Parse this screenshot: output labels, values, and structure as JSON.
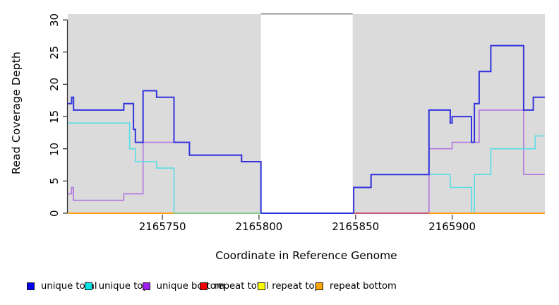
{
  "axes": {
    "x_label": "Coordinate in Reference Genome",
    "y_label": "Read Coverage Depth",
    "x_ticks": [
      2165750,
      2165800,
      2165850,
      2165900
    ],
    "y_ticks": [
      0,
      5,
      10,
      15,
      20,
      25,
      30
    ],
    "x_range": [
      2165701,
      2165948
    ],
    "y_range": [
      0,
      31
    ]
  },
  "legend": [
    {
      "label": "unique total",
      "color": "#0000EE"
    },
    {
      "label": "unique top",
      "color": "#00E6E6"
    },
    {
      "label": "unique bottom",
      "color": "#A020F0"
    },
    {
      "label": "repeat total",
      "color": "#EE0000"
    },
    {
      "label": "repeat top",
      "color": "#FFFF00"
    },
    {
      "label": "repeat bottom",
      "color": "#FFA500"
    }
  ],
  "chart_data": {
    "type": "line",
    "style": "step-after",
    "grid": "off",
    "plot_bg": "#DBDBDB",
    "masked_region": {
      "x_start": 2165801,
      "x_end": 2165848.5,
      "fill": "#FFFFFF",
      "border_top_color": "#8A8A8A",
      "note": "no-data region drawn as white rectangle spanning full plot height (top edge at y=31)"
    },
    "series": [
      {
        "name": "repeat total",
        "line_color": "#CC2222",
        "points": [
          [
            2165701,
            0
          ],
          [
            2165948,
            0
          ]
        ]
      },
      {
        "name": "repeat top",
        "line_color": "#EEEE00",
        "points": [
          [
            2165701,
            0
          ],
          [
            2165948,
            0
          ]
        ]
      },
      {
        "name": "repeat bottom",
        "line_color": "#FF9E0F",
        "points": [
          [
            2165701,
            0
          ],
          [
            2165948,
            0
          ]
        ]
      },
      {
        "name": "unique bottom",
        "line_color": "#B176DF",
        "points": [
          [
            2165701,
            3
          ],
          [
            2165703,
            4
          ],
          [
            2165704,
            2
          ],
          [
            2165730,
            3
          ],
          [
            2165740,
            11
          ],
          [
            2165764,
            9
          ],
          [
            2165791,
            8
          ],
          [
            2165801,
            0
          ],
          [
            2165888,
            10
          ],
          [
            2165900,
            11
          ],
          [
            2165914,
            16
          ],
          [
            2165937,
            6
          ],
          [
            2165948,
            6
          ]
        ]
      },
      {
        "name": "unique top",
        "line_color": "#58DDE6",
        "points": [
          [
            2165701,
            14
          ],
          [
            2165733,
            10
          ],
          [
            2165736,
            8
          ],
          [
            2165747,
            7
          ],
          [
            2165756,
            0
          ],
          [
            2165849,
            4
          ],
          [
            2165858,
            6
          ],
          [
            2165899,
            4
          ],
          [
            2165910,
            0
          ],
          [
            2165911.5,
            6
          ],
          [
            2165920,
            10
          ],
          [
            2165943,
            12
          ],
          [
            2165948,
            12
          ]
        ]
      },
      {
        "name": "unique total",
        "line_color": "#3333DD",
        "points": [
          [
            2165701,
            17
          ],
          [
            2165703,
            18
          ],
          [
            2165704,
            16
          ],
          [
            2165730,
            17
          ],
          [
            2165735,
            13
          ],
          [
            2165736,
            11
          ],
          [
            2165740,
            19
          ],
          [
            2165747,
            18
          ],
          [
            2165756,
            11
          ],
          [
            2165764,
            9
          ],
          [
            2165791,
            8
          ],
          [
            2165801,
            0
          ],
          [
            2165849,
            4
          ],
          [
            2165858,
            6
          ],
          [
            2165888,
            16
          ],
          [
            2165899,
            14
          ],
          [
            2165900,
            15
          ],
          [
            2165910,
            11
          ],
          [
            2165911.5,
            17
          ],
          [
            2165914,
            22
          ],
          [
            2165920,
            26
          ],
          [
            2165937,
            16
          ],
          [
            2165942,
            18
          ],
          [
            2165948,
            18
          ]
        ]
      }
    ],
    "zero_line_overlays": [
      {
        "x_start": 2165701,
        "x_end": 2165756,
        "color": "#FF9E0F"
      },
      {
        "x_start": 2165756,
        "x_end": 2165801,
        "color": "#7ECF92"
      },
      {
        "x_start": 2165849,
        "x_end": 2165888,
        "color": "#C64E72"
      },
      {
        "x_start": 2165888,
        "x_end": 2165948,
        "color": "#FF9E0F"
      }
    ]
  }
}
